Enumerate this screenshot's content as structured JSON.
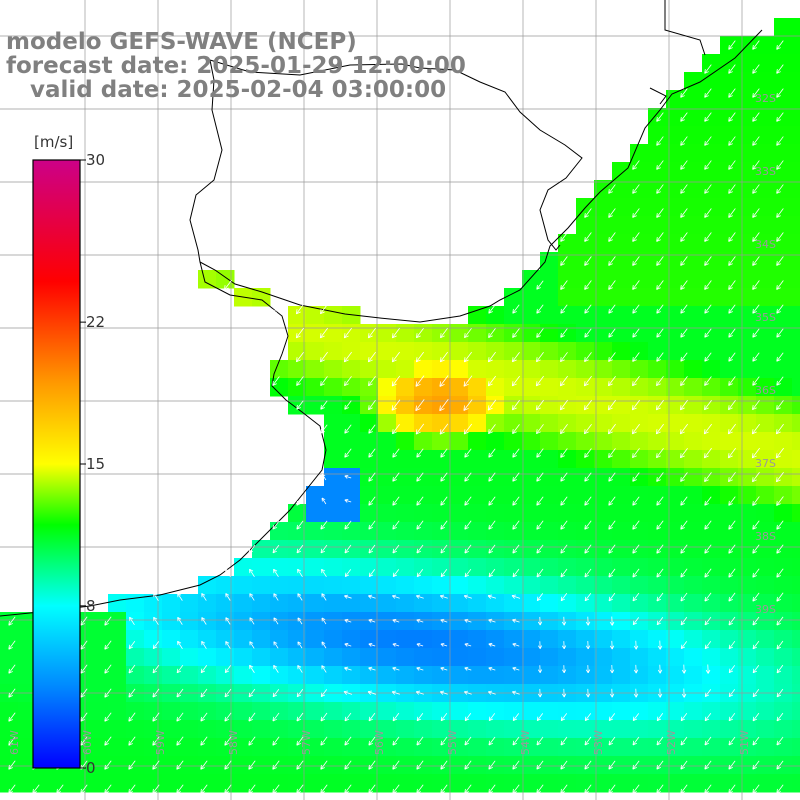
{
  "title": {
    "line1": "modelo GEFS-WAVE (NCEP)",
    "line2": "forecast date: 2025-01-29 12:00:00",
    "line3": "   valid date: 2025-02-04 03:00:00"
  },
  "colorbar": {
    "unit": "[m/s]",
    "ticks": [
      {
        "value": 30,
        "label": "30"
      },
      {
        "value": 22,
        "label": "22"
      },
      {
        "value": 15,
        "label": "15"
      },
      {
        "value": 8,
        "label": "8"
      },
      {
        "value": 0,
        "label": "0"
      }
    ],
    "stops": [
      {
        "value": 0,
        "color": "#0000ff"
      },
      {
        "value": 4,
        "color": "#0088ff"
      },
      {
        "value": 8,
        "color": "#00ffff"
      },
      {
        "value": 12,
        "color": "#00ff00"
      },
      {
        "value": 15,
        "color": "#ffff00"
      },
      {
        "value": 19,
        "color": "#ff9900"
      },
      {
        "value": 24,
        "color": "#ff0000"
      },
      {
        "value": 30,
        "color": "#cc0088"
      }
    ]
  },
  "map": {
    "longitude_labels": [
      "61W",
      "60W",
      "59W",
      "58W",
      "57W",
      "56W",
      "55W",
      "54W",
      "53W",
      "52W",
      "51W"
    ],
    "latitude_labels": [
      "32S",
      "33S",
      "34S",
      "35S",
      "36S",
      "37S",
      "38S",
      "39S"
    ]
  }
}
